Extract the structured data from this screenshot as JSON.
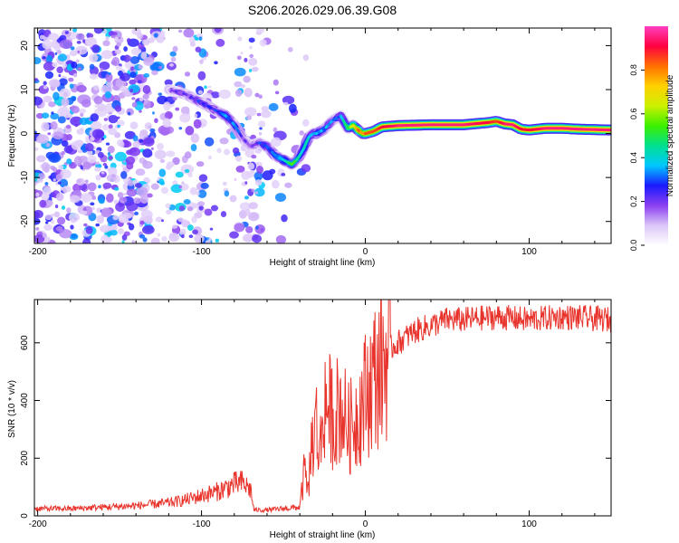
{
  "title": "S206.2026.029.06.39.G08",
  "chart_data": [
    {
      "type": "heatmap",
      "xlabel": "Height of straight line (km)",
      "ylabel": "Frequency (Hz)",
      "xlim": [
        -202,
        150
      ],
      "ylim": [
        -25,
        24
      ],
      "xticks": [
        -200,
        -100,
        0,
        100
      ],
      "yticks": [
        -20,
        -10,
        0,
        10,
        20
      ],
      "colorbar": {
        "label": "Normalized spectral amplitude",
        "range": [
          0,
          1
        ],
        "ticks": [
          0.0,
          0.2,
          0.4,
          0.6,
          0.8
        ],
        "ticks_text": [
          "0.0",
          "0.2",
          "0.4",
          "0.6",
          "0.8"
        ],
        "colors": [
          "#ffffff",
          "#dcc6f8",
          "#8a3ff0",
          "#1a1aff",
          "#00c8ff",
          "#00e090",
          "#3cf000",
          "#ccf000",
          "#ffd000",
          "#ff7000",
          "#ff0040",
          "#ff40c0"
        ]
      },
      "ridge": {
        "x": [
          -120,
          -110,
          -100,
          -95,
          -90,
          -85,
          -80,
          -75,
          -70,
          -65,
          -60,
          -55,
          -50,
          -45,
          -42,
          -40,
          -37,
          -35,
          -32,
          -30,
          -25,
          -20,
          -15,
          -12,
          -10,
          -8,
          -5,
          -2,
          0,
          5,
          10,
          20,
          40,
          60,
          75,
          80,
          85,
          90,
          95,
          100,
          110,
          120,
          130,
          140,
          150
        ],
        "y": [
          10,
          9,
          7,
          6,
          5,
          4,
          2,
          -1,
          -3,
          -2,
          -3,
          -5,
          -6,
          -7,
          -6,
          -5,
          -3,
          -1,
          0,
          0,
          1,
          3,
          4,
          2,
          1,
          2,
          1,
          0,
          0,
          0.5,
          1.5,
          1.8,
          2.0,
          2.0,
          2.5,
          2.8,
          2.2,
          2.0,
          1.0,
          0.8,
          1.2,
          1.2,
          1.0,
          0.9,
          0.8
        ],
        "amplitude": [
          0.15,
          0.2,
          0.25,
          0.25,
          0.3,
          0.35,
          0.3,
          0.2,
          0.2,
          0.25,
          0.3,
          0.35,
          0.45,
          0.5,
          0.45,
          0.4,
          0.4,
          0.35,
          0.3,
          0.4,
          0.35,
          0.3,
          0.35,
          0.45,
          0.55,
          0.7,
          0.8,
          0.8,
          0.85,
          0.85,
          0.9,
          0.95,
          0.95,
          0.95,
          0.9,
          0.85,
          0.95,
          0.95,
          0.9,
          0.9,
          0.95,
          0.95,
          0.95,
          0.95,
          0.95
        ]
      }
    },
    {
      "type": "line",
      "xlabel": "Height of straight line (km)",
      "ylabel": "SNR (10 * v/v)",
      "xlim": [
        -202,
        150
      ],
      "ylim": [
        0,
        750
      ],
      "xticks": [
        -200,
        -100,
        0,
        100
      ],
      "yticks": [
        0,
        200,
        400,
        600
      ],
      "color": "#e8342c",
      "envelope": {
        "x": [
          -202,
          -180,
          -160,
          -140,
          -120,
          -110,
          -100,
          -90,
          -80,
          -75,
          -70,
          -68,
          -60,
          -50,
          -40,
          -37,
          -35,
          -33,
          -30,
          -28,
          -25,
          -20,
          -15,
          -10,
          -5,
          0,
          5,
          10,
          15,
          20,
          25,
          30,
          40,
          50,
          60,
          80,
          100,
          120,
          150
        ],
        "y": [
          25,
          25,
          30,
          35,
          45,
          55,
          70,
          85,
          110,
          115,
          90,
          20,
          20,
          25,
          30,
          160,
          80,
          240,
          330,
          200,
          400,
          350,
          380,
          300,
          350,
          420,
          480,
          520,
          580,
          600,
          620,
          640,
          660,
          680,
          680,
          690,
          680,
          690,
          680
        ]
      }
    }
  ]
}
